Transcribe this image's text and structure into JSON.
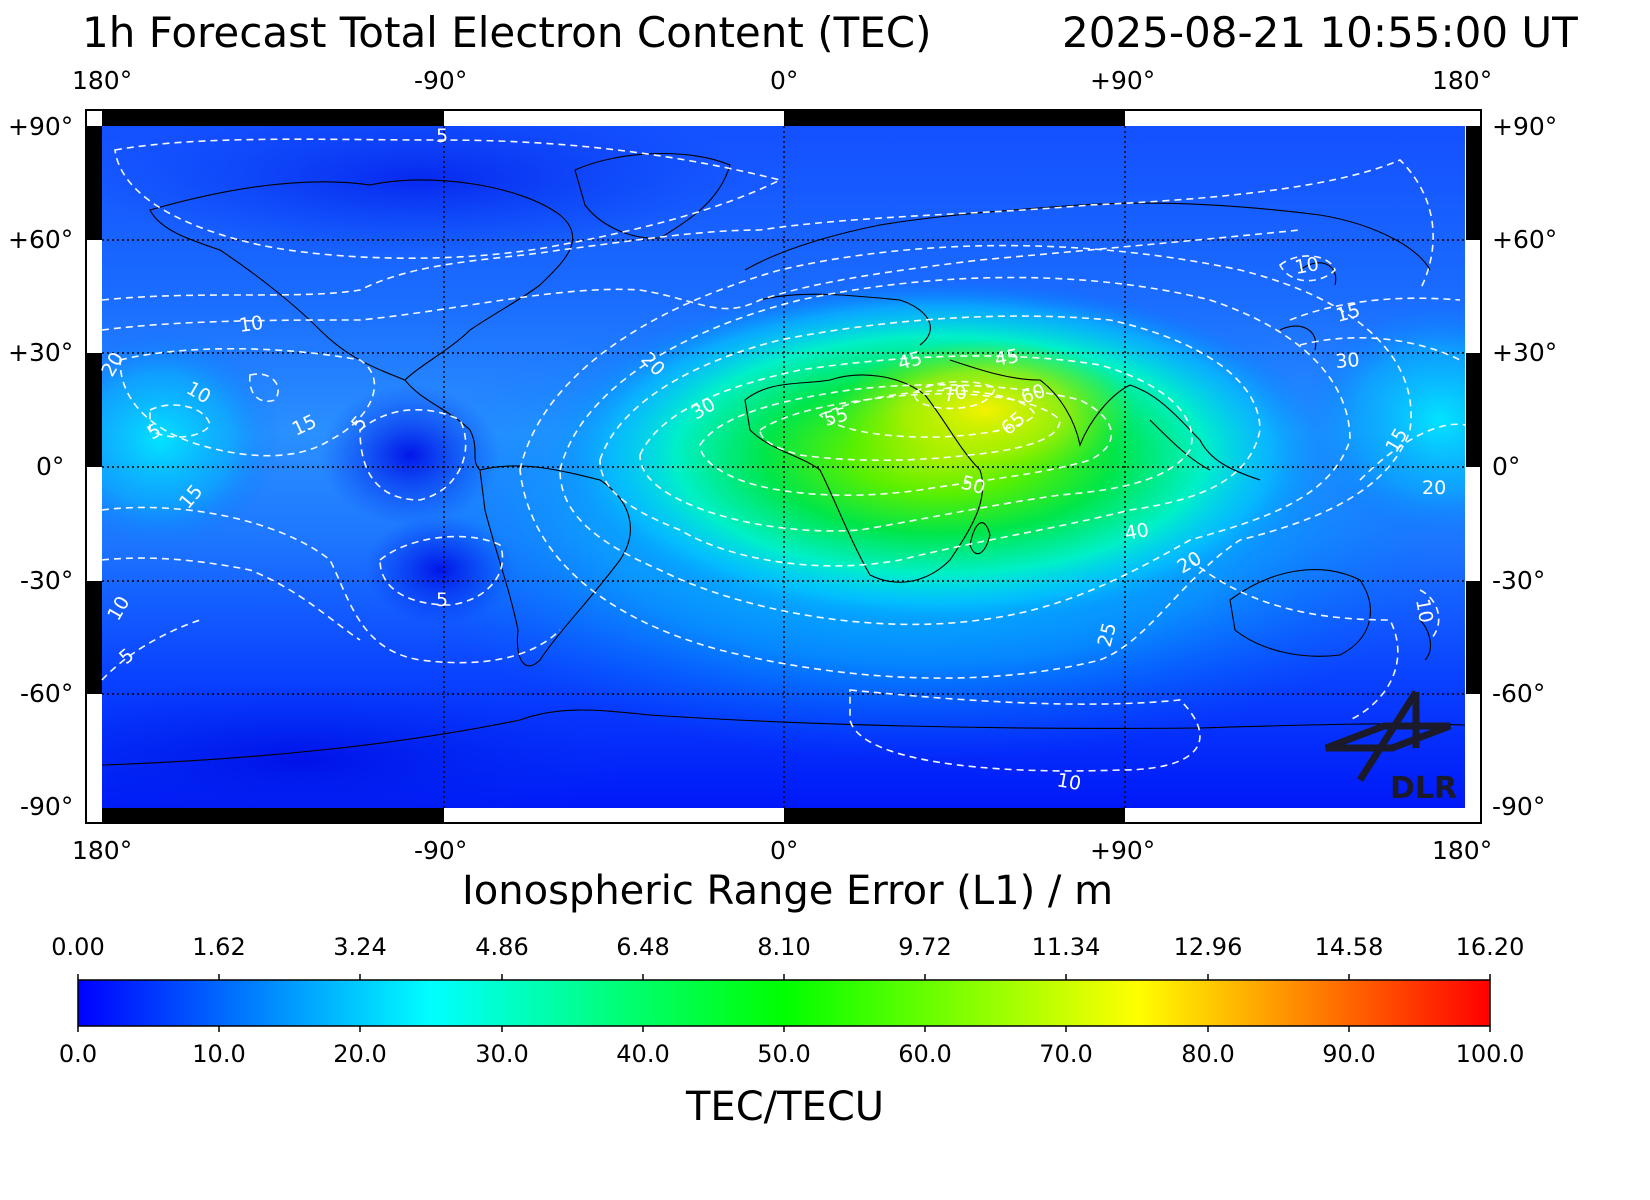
{
  "header": {
    "title": "1h Forecast Total Electron Content (TEC)",
    "timestamp": "2025-08-21 10:55:00 UT"
  },
  "map": {
    "longitude_labels": [
      "180°",
      "-90°",
      "0°",
      "+90°",
      "180°"
    ],
    "latitude_labels": [
      "+90°",
      "+60°",
      "+30°",
      "0°",
      "-30°",
      "-60°",
      "-90°"
    ],
    "contour_labels": [
      "5",
      "10",
      "15",
      "20",
      "25",
      "30",
      "40",
      "45",
      "50",
      "55",
      "60",
      "65",
      "70"
    ],
    "logo_text": "DLR"
  },
  "colorbar": {
    "top_title": "Ionospheric Range Error (L1) / m",
    "top_ticks": [
      "0.00",
      "1.62",
      "3.24",
      "4.86",
      "6.48",
      "8.10",
      "9.72",
      "11.34",
      "12.96",
      "14.58",
      "16.20"
    ],
    "bottom_ticks": [
      "0.0",
      "10.0",
      "20.0",
      "30.0",
      "40.0",
      "50.0",
      "60.0",
      "70.0",
      "80.0",
      "90.0",
      "100.0"
    ],
    "bottom_title": "TEC/TECU",
    "colors": [
      "#0000ff",
      "#00ffff",
      "#00ff00",
      "#ffff00",
      "#ff0000"
    ]
  }
}
